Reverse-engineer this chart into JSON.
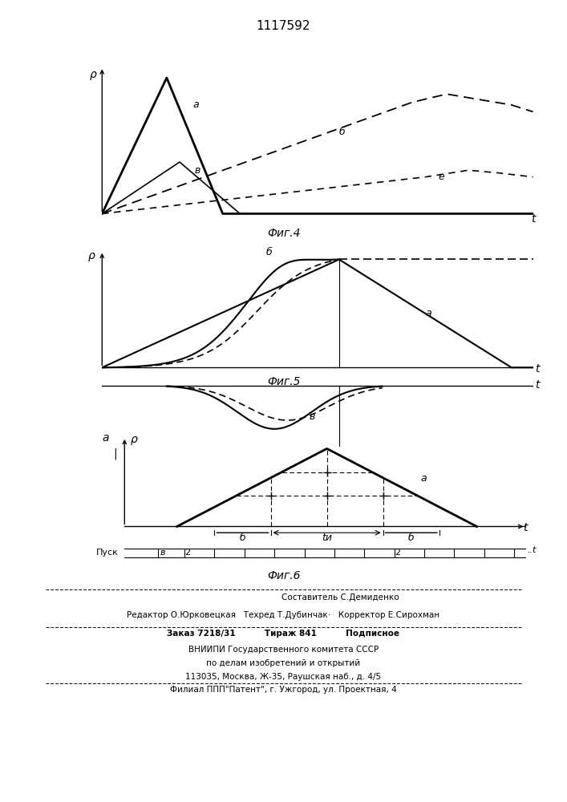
{
  "title": "1117592",
  "bg_color": "#ffffff",
  "footer_lines": [
    "Составитель С.Демиденко",
    "Редактор О.Юрковецкая   Техред Т.Дубинчак·   Корректор Е.Сирохман",
    "Заказ 7218/31          Тираж 841          Подписное",
    "ВНИИПИ Государственного комитета СССР",
    "по делам изобретений и открытий",
    "113035, Москва, Ж-35, Раушская наб., д. 4/5",
    "Филиал ППП\"Патент\", г. Ужгород, ул. Проектная, 4"
  ]
}
